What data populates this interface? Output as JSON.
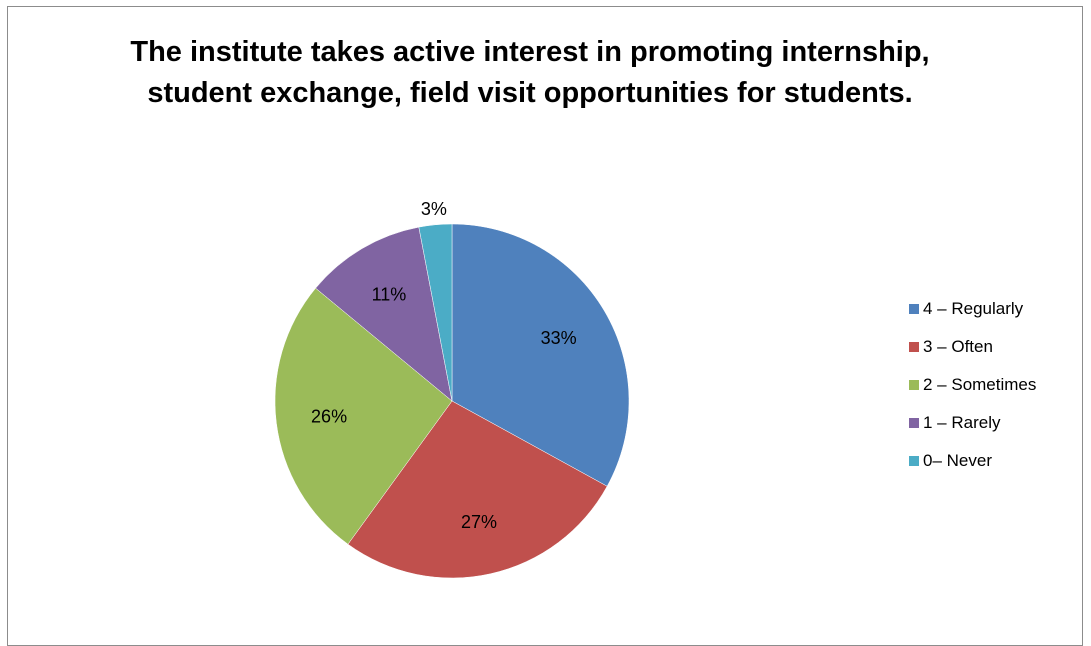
{
  "chart_data": {
    "type": "pie",
    "title": "The institute takes active interest in promoting internship, student exchange, field visit opportunities for students.",
    "categories": [
      "4 – Regularly",
      "3 – Often",
      "2 – Sometimes",
      "1 – Rarely",
      "0– Never"
    ],
    "values": [
      33,
      27,
      26,
      11,
      3
    ],
    "value_labels": [
      "33%",
      "27%",
      "26%",
      "11%",
      "3%"
    ],
    "colors": [
      "#4f81bd",
      "#c0504d",
      "#9bbb59",
      "#8064a2",
      "#4bacc6"
    ],
    "legend_position": "right",
    "start_angle": "12 o'clock",
    "direction": "clockwise"
  }
}
